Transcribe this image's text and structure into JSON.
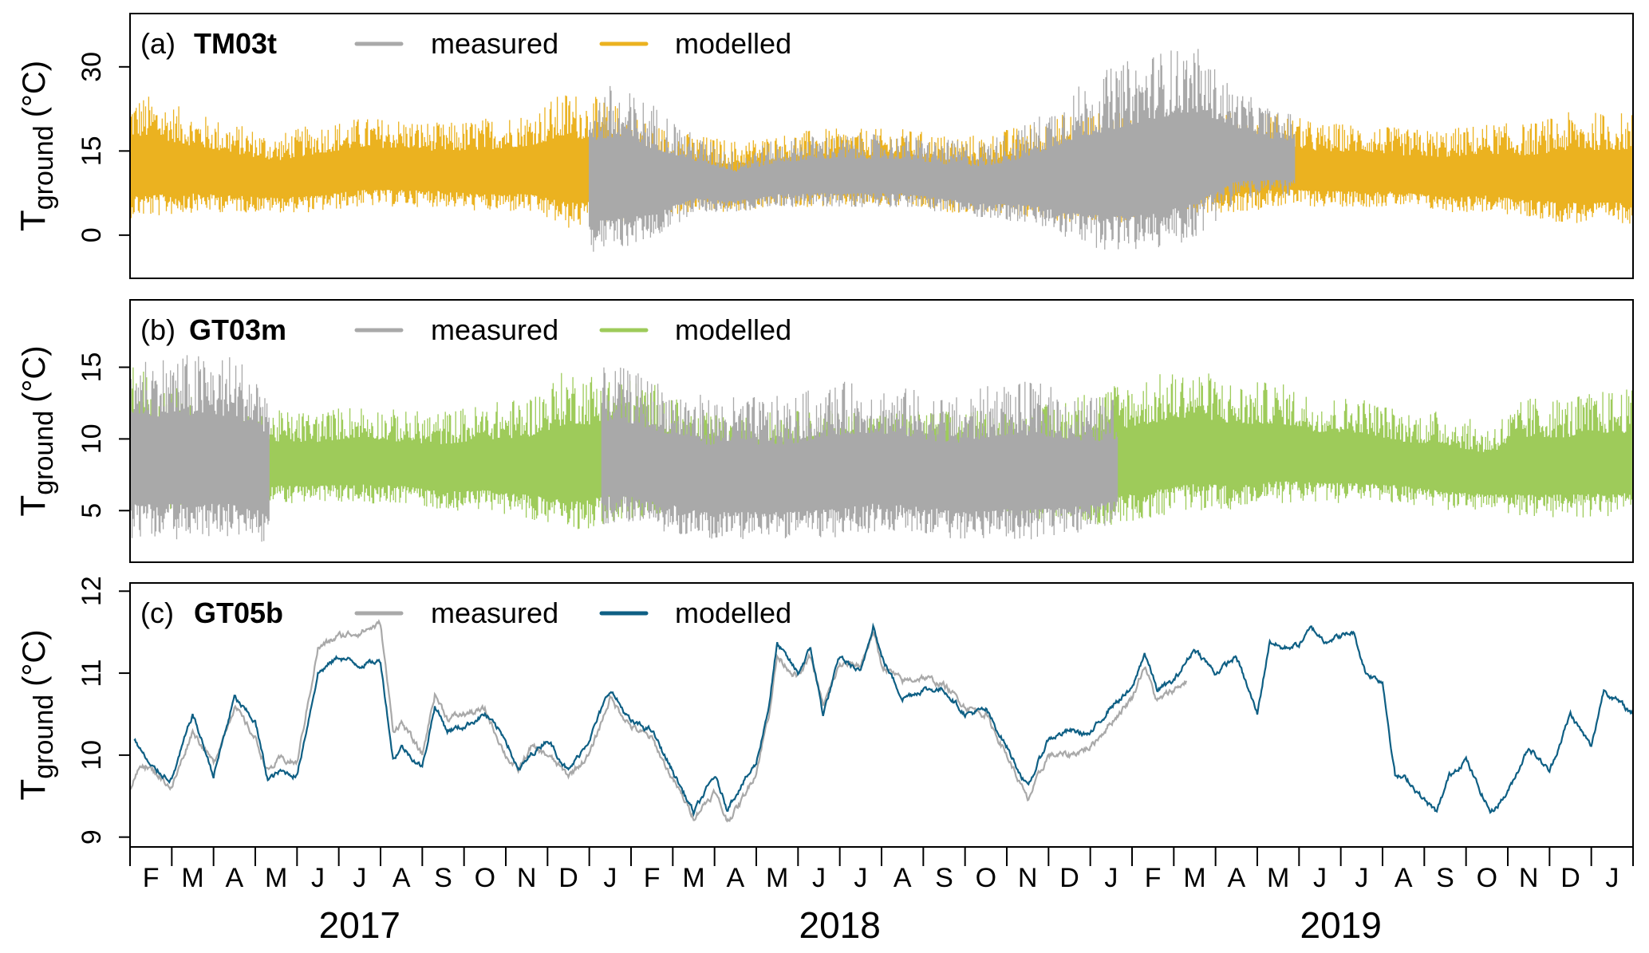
{
  "chart_data": {
    "type": "line",
    "x_axis": {
      "unit": "months since 2017-02-01",
      "range": [
        0,
        36
      ],
      "month_labels": [
        "F",
        "M",
        "A",
        "M",
        "J",
        "J",
        "A",
        "S",
        "O",
        "N",
        "D",
        "J",
        "F",
        "M",
        "A",
        "M",
        "J",
        "J",
        "A",
        "S",
        "O",
        "N",
        "D",
        "J",
        "F",
        "M",
        "A",
        "M",
        "J",
        "J",
        "A",
        "S",
        "O",
        "N",
        "D",
        "J"
      ],
      "years": [
        {
          "label": "2017",
          "center": 5.5
        },
        {
          "label": "2018",
          "center": 17
        },
        {
          "label": "2019",
          "center": 29
        }
      ]
    },
    "y_title_main": "T",
    "y_title_sub": "ground",
    "y_title_unit": "(°C)",
    "legend_measured": "measured",
    "legend_modelled": "modelled",
    "colors": {
      "measured": "#a9a9a9",
      "panel_a": "#ebb220",
      "panel_b": "#9ecb5a",
      "panel_c": "#0e5f84"
    },
    "panels": [
      {
        "tag": "(a)",
        "name": "TM03t",
        "ylim": [
          -7.7,
          39.5
        ],
        "yticks": [
          0,
          15,
          30
        ],
        "style": "envelope",
        "modelled": {
          "start": 0,
          "end": 36,
          "upper": [
            25,
            22,
            20,
            18,
            20,
            21,
            21,
            20,
            21,
            22,
            26,
            24,
            20,
            18,
            17,
            18,
            19,
            19,
            19,
            18,
            18,
            20,
            22,
            22,
            22,
            22,
            22,
            22,
            20,
            20,
            19,
            19,
            20,
            20,
            22,
            22
          ],
          "lower": [
            3,
            4,
            4,
            4,
            4,
            5,
            5,
            5,
            4,
            4,
            1,
            2,
            3,
            4,
            4,
            5,
            5,
            5,
            5,
            4,
            4,
            3,
            2,
            2,
            3,
            4,
            4,
            5,
            5,
            5,
            5,
            4,
            4,
            3,
            2,
            2
          ]
        },
        "measured": {
          "start": 11,
          "end": 27.9,
          "upper": [
            27,
            24,
            18,
            15,
            17,
            18,
            18,
            18,
            17,
            17,
            20,
            26,
            30,
            33,
            34,
            26,
            22
          ],
          "lower": [
            -3,
            -1,
            4,
            4,
            5,
            5,
            5,
            5,
            4,
            3,
            2,
            -1,
            -3,
            -3,
            -1,
            6,
            7
          ]
        }
      },
      {
        "tag": "(b)",
        "name": "GT03m",
        "ylim": [
          1.4,
          19.7
        ],
        "yticks": [
          5,
          10,
          15
        ],
        "style": "envelope",
        "modelled": {
          "start": 0,
          "end": 36,
          "upper": [
            15,
            13,
            12,
            12,
            12,
            12.5,
            12,
            12,
            12.5,
            13,
            15,
            14.5,
            14,
            12,
            11.5,
            12,
            12,
            12,
            12,
            12,
            12,
            12,
            13,
            14,
            14.5,
            15,
            14,
            14,
            13,
            13,
            12,
            12,
            11,
            13,
            13,
            13.5
          ],
          "lower": [
            4.5,
            5,
            5,
            5.5,
            5.5,
            5.5,
            5.5,
            5,
            5,
            4.5,
            3.5,
            4,
            4.5,
            5,
            5,
            5.5,
            5.5,
            5.5,
            5.5,
            5,
            5,
            4.5,
            4,
            4,
            4.5,
            5,
            5,
            5.5,
            5.5,
            5.5,
            5.5,
            5,
            5,
            4.5,
            4.5,
            4.5
          ]
        },
        "measured_segments": [
          {
            "start": 0,
            "end": 3.35,
            "upper": [
              16,
              16,
              16,
              14
            ],
            "lower": [
              3,
              3,
              3,
              2.5
            ]
          },
          {
            "start": 11.3,
            "end": 23.65,
            "upper": [
              15,
              14,
              13,
              13,
              13,
              14,
              14,
              13.5,
              13,
              14,
              14,
              13,
              13
            ],
            "lower": [
              4,
              3.5,
              3,
              3,
              3,
              3,
              3.5,
              3.5,
              3,
              3,
              3,
              3.5,
              4
            ]
          }
        ]
      },
      {
        "tag": "(c)",
        "name": "GT05b",
        "ylim": [
          8.88,
          12.1
        ],
        "yticks": [
          9,
          10,
          11,
          12
        ],
        "style": "line",
        "modelled": [
          [
            0.1,
            10.2
          ],
          [
            0.5,
            9.85
          ],
          [
            1,
            9.7
          ],
          [
            1.5,
            10.5
          ],
          [
            2,
            9.75
          ],
          [
            2.5,
            10.7
          ],
          [
            3,
            10.4
          ],
          [
            3.3,
            9.7
          ],
          [
            3.6,
            9.8
          ],
          [
            4,
            9.75
          ],
          [
            4.5,
            11.0
          ],
          [
            5,
            11.2
          ],
          [
            5.5,
            11.1
          ],
          [
            6,
            11.15
          ],
          [
            6.3,
            9.95
          ],
          [
            6.5,
            10.1
          ],
          [
            7,
            9.85
          ],
          [
            7.3,
            10.6
          ],
          [
            7.6,
            10.3
          ],
          [
            8,
            10.35
          ],
          [
            8.5,
            10.5
          ],
          [
            9,
            10.2
          ],
          [
            9.3,
            9.8
          ],
          [
            9.6,
            10.0
          ],
          [
            10,
            10.2
          ],
          [
            10.5,
            9.8
          ],
          [
            11,
            10.2
          ],
          [
            11.5,
            10.8
          ],
          [
            12,
            10.4
          ],
          [
            12.5,
            10.3
          ],
          [
            13,
            9.8
          ],
          [
            13.5,
            9.3
          ],
          [
            14,
            9.75
          ],
          [
            14.3,
            9.35
          ],
          [
            14.6,
            9.6
          ],
          [
            15,
            9.9
          ],
          [
            15.3,
            10.6
          ],
          [
            15.5,
            11.35
          ],
          [
            16,
            11.0
          ],
          [
            16.3,
            11.3
          ],
          [
            16.6,
            10.5
          ],
          [
            17,
            11.2
          ],
          [
            17.5,
            11.0
          ],
          [
            17.8,
            11.6
          ],
          [
            18,
            11.2
          ],
          [
            18.5,
            10.7
          ],
          [
            19,
            10.8
          ],
          [
            19.5,
            10.8
          ],
          [
            20,
            10.5
          ],
          [
            20.5,
            10.55
          ],
          [
            21,
            10.1
          ],
          [
            21.5,
            9.6
          ],
          [
            22,
            10.2
          ],
          [
            22.5,
            10.3
          ],
          [
            23,
            10.25
          ],
          [
            23.5,
            10.6
          ],
          [
            24,
            10.8
          ],
          [
            24.3,
            11.25
          ],
          [
            24.6,
            10.8
          ],
          [
            25,
            10.9
          ],
          [
            25.5,
            11.3
          ],
          [
            26,
            11.0
          ],
          [
            26.5,
            11.2
          ],
          [
            27,
            10.5
          ],
          [
            27.3,
            11.4
          ],
          [
            27.6,
            11.3
          ],
          [
            28,
            11.35
          ],
          [
            28.3,
            11.55
          ],
          [
            28.6,
            11.4
          ],
          [
            29,
            11.45
          ],
          [
            29.3,
            11.5
          ],
          [
            29.6,
            11.0
          ],
          [
            30,
            10.9
          ],
          [
            30.3,
            9.75
          ],
          [
            30.6,
            9.7
          ],
          [
            31,
            9.45
          ],
          [
            31.3,
            9.3
          ],
          [
            31.6,
            9.75
          ],
          [
            32,
            9.95
          ],
          [
            32.3,
            9.6
          ],
          [
            32.6,
            9.3
          ],
          [
            33,
            9.55
          ],
          [
            33.5,
            10.1
          ],
          [
            34,
            9.8
          ],
          [
            34.5,
            10.5
          ],
          [
            35,
            10.1
          ],
          [
            35.3,
            10.8
          ],
          [
            36,
            10.5
          ]
        ],
        "measured": [
          [
            0,
            9.6
          ],
          [
            0.3,
            9.9
          ],
          [
            0.7,
            9.75
          ],
          [
            1,
            9.6
          ],
          [
            1.5,
            10.3
          ],
          [
            2,
            9.9
          ],
          [
            2.5,
            10.6
          ],
          [
            3,
            10.2
          ],
          [
            3.3,
            9.8
          ],
          [
            3.6,
            9.95
          ],
          [
            4,
            9.9
          ],
          [
            4.5,
            11.3
          ],
          [
            5,
            11.45
          ],
          [
            5.5,
            11.5
          ],
          [
            6,
            11.6
          ],
          [
            6.3,
            10.3
          ],
          [
            6.5,
            10.4
          ],
          [
            7,
            10.0
          ],
          [
            7.3,
            10.75
          ],
          [
            7.6,
            10.45
          ],
          [
            8,
            10.5
          ],
          [
            8.5,
            10.55
          ],
          [
            9,
            10.0
          ],
          [
            9.3,
            9.8
          ],
          [
            9.6,
            10.1
          ],
          [
            10,
            10.0
          ],
          [
            10.5,
            9.75
          ],
          [
            11,
            10.0
          ],
          [
            11.5,
            10.7
          ],
          [
            12,
            10.35
          ],
          [
            12.5,
            10.2
          ],
          [
            13,
            9.7
          ],
          [
            13.5,
            9.25
          ],
          [
            14,
            9.55
          ],
          [
            14.3,
            9.2
          ],
          [
            14.6,
            9.4
          ],
          [
            15,
            9.8
          ],
          [
            15.3,
            10.5
          ],
          [
            15.5,
            11.2
          ],
          [
            16,
            10.95
          ],
          [
            16.3,
            11.2
          ],
          [
            16.6,
            10.6
          ],
          [
            17,
            11.1
          ],
          [
            17.5,
            11.1
          ],
          [
            17.8,
            11.5
          ],
          [
            18,
            11.1
          ],
          [
            18.5,
            10.9
          ],
          [
            19,
            10.95
          ],
          [
            19.5,
            10.85
          ],
          [
            20,
            10.6
          ],
          [
            20.5,
            10.5
          ],
          [
            21,
            10.0
          ],
          [
            21.5,
            9.45
          ],
          [
            22,
            10.0
          ],
          [
            22.5,
            10.0
          ],
          [
            23,
            10.1
          ],
          [
            23.5,
            10.4
          ],
          [
            24,
            10.7
          ],
          [
            24.3,
            11.1
          ],
          [
            24.6,
            10.65
          ],
          [
            25,
            10.8
          ],
          [
            25.3,
            10.9
          ]
        ]
      }
    ]
  }
}
